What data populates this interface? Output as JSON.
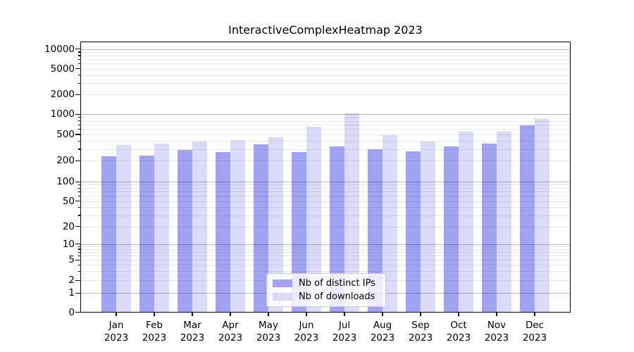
{
  "title": "InteractiveComplexHeatmap 2023",
  "colors": {
    "bar_distinct_ips": "#a2a2f2",
    "bar_downloads": "#dbdbf9",
    "grid_major": "#b8b8b8",
    "grid_minor": "#e9e9e9",
    "axis": "#000000",
    "legend_border": "#cccccc",
    "background": "#ffffff"
  },
  "legend": {
    "items": [
      {
        "label": "Nb of distinct IPs",
        "series": "bar_distinct_ips"
      },
      {
        "label": "Nb of downloads",
        "series": "bar_downloads"
      }
    ]
  },
  "chart_data": {
    "type": "bar",
    "title": "InteractiveComplexHeatmap 2023",
    "categories": [
      "Jan 2023",
      "Feb 2023",
      "Mar 2023",
      "Apr 2023",
      "May 2023",
      "Jun 2023",
      "Jul 2023",
      "Aug 2023",
      "Sep 2023",
      "Oct 2023",
      "Nov 2023",
      "Dec 2023"
    ],
    "series": [
      {
        "name": "Nb of distinct IPs",
        "values": [
          233,
          237,
          289,
          272,
          355,
          270,
          330,
          300,
          276,
          332,
          365,
          680
        ]
      },
      {
        "name": "Nb of downloads",
        "values": [
          345,
          362,
          392,
          410,
          457,
          652,
          1030,
          483,
          390,
          553,
          550,
          858
        ]
      }
    ],
    "xlabel": "",
    "ylabel": "",
    "yscale": "symlog",
    "y_ticks": [
      0,
      1,
      2,
      5,
      10,
      20,
      50,
      100,
      200,
      500,
      1000,
      2000,
      5000,
      10000
    ],
    "ylim": [
      0,
      13000
    ],
    "grid": true,
    "legend_position": "lower center"
  }
}
